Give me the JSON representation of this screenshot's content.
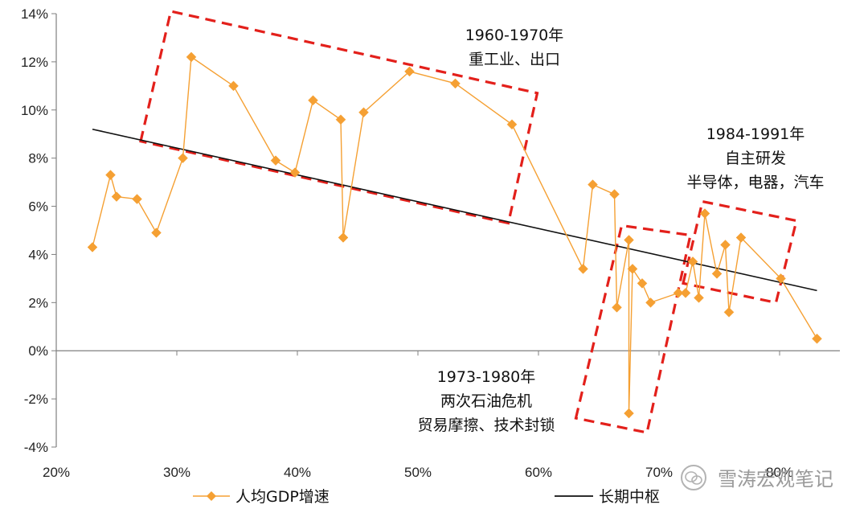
{
  "chart_data": {
    "type": "scatter",
    "title": "",
    "xlabel": "",
    "ylabel": "",
    "xlim": [
      0.2,
      0.85
    ],
    "ylim": [
      -0.04,
      0.14
    ],
    "x_ticks": [
      "20%",
      "30%",
      "40%",
      "50%",
      "60%",
      "70%",
      "80%"
    ],
    "y_ticks": [
      "14%",
      "12%",
      "10%",
      "8%",
      "6%",
      "4%",
      "2%",
      "0%",
      "-2%",
      "-4%"
    ],
    "grid": false,
    "legend_position": "bottom",
    "series": [
      {
        "name": "人均GDP增速",
        "style": "line-with-diamond-markers",
        "color": "#F5A033",
        "points": [
          [
            0.23,
            0.043
          ],
          [
            0.245,
            0.073
          ],
          [
            0.25,
            0.064
          ],
          [
            0.267,
            0.063
          ],
          [
            0.283,
            0.049
          ],
          [
            0.305,
            0.08
          ],
          [
            0.312,
            0.122
          ],
          [
            0.347,
            0.11
          ],
          [
            0.382,
            0.079
          ],
          [
            0.398,
            0.074
          ],
          [
            0.413,
            0.104
          ],
          [
            0.436,
            0.096
          ],
          [
            0.438,
            0.047
          ],
          [
            0.455,
            0.099
          ],
          [
            0.493,
            0.116
          ],
          [
            0.531,
            0.111
          ],
          [
            0.578,
            0.094
          ],
          [
            0.637,
            0.034
          ],
          [
            0.645,
            0.069
          ],
          [
            0.663,
            0.065
          ],
          [
            0.665,
            0.018
          ],
          [
            0.675,
            0.046
          ],
          [
            0.675,
            -0.026
          ],
          [
            0.678,
            0.034
          ],
          [
            0.686,
            0.028
          ],
          [
            0.693,
            0.02
          ],
          [
            0.716,
            0.024
          ],
          [
            0.722,
            0.024
          ],
          [
            0.728,
            0.037
          ],
          [
            0.733,
            0.022
          ],
          [
            0.738,
            0.057
          ],
          [
            0.748,
            0.032
          ],
          [
            0.755,
            0.044
          ],
          [
            0.758,
            0.016
          ],
          [
            0.768,
            0.047
          ],
          [
            0.801,
            0.03
          ],
          [
            0.831,
            0.005
          ]
        ]
      },
      {
        "name": "长期中枢",
        "style": "line",
        "color": "#111111",
        "points": [
          [
            0.23,
            0.092
          ],
          [
            0.831,
            0.025
          ]
        ]
      }
    ],
    "annotations": [
      {
        "lines": [
          "1960-1970年",
          "重工业、出口"
        ],
        "box": [
          [
            0.27,
            0.087
          ],
          [
            0.295,
            0.141
          ],
          [
            0.599,
            0.107
          ],
          [
            0.575,
            0.053
          ]
        ]
      },
      {
        "lines": [
          "1984-1991年",
          "自主研发",
          "半导体，电器，汽车"
        ],
        "box": [
          [
            0.72,
            0.028
          ],
          [
            0.736,
            0.062
          ],
          [
            0.814,
            0.054
          ],
          [
            0.797,
            0.02
          ]
        ]
      },
      {
        "lines": [
          "1973-1980年",
          "两次石油危机",
          "贸易摩擦、技术封锁"
        ],
        "box": [
          [
            0.631,
            -0.028
          ],
          [
            0.669,
            0.052
          ],
          [
            0.726,
            0.048
          ],
          [
            0.69,
            -0.034
          ]
        ]
      }
    ]
  },
  "watermark": {
    "text": "雪涛宏观笔记",
    "icon": "wechat-icon"
  }
}
